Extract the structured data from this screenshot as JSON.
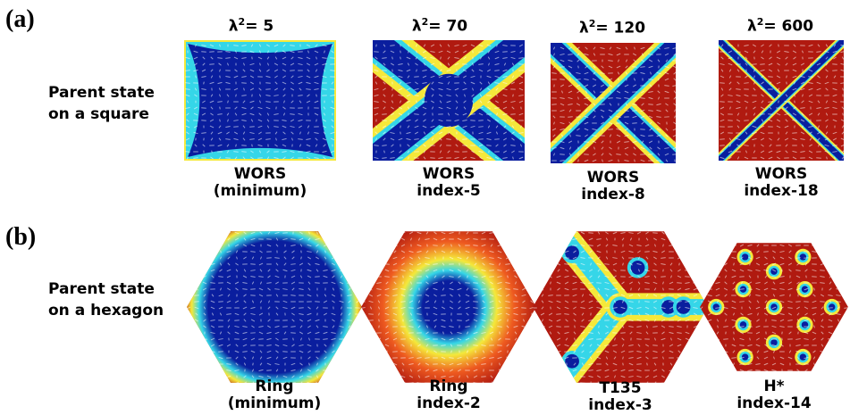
{
  "panels": {
    "a": {
      "label": "(a)",
      "row_title": [
        "Parent state",
        "on a square"
      ],
      "columns": [
        {
          "lambda_symbol": "λ",
          "lambda_exp": "2",
          "lambda_value": "= 5",
          "caption": [
            "WORS",
            "(minimum)"
          ]
        },
        {
          "lambda_symbol": "λ",
          "lambda_exp": "2",
          "lambda_value": "= 70",
          "caption": [
            "WORS",
            "index-5"
          ]
        },
        {
          "lambda_symbol": "λ",
          "lambda_exp": "2",
          "lambda_value": "= 120",
          "caption": [
            "WORS",
            "index-8"
          ]
        },
        {
          "lambda_symbol": "λ",
          "lambda_exp": "2",
          "lambda_value": "= 600",
          "caption": [
            "WORS",
            "index-18"
          ]
        }
      ]
    },
    "b": {
      "label": "(b)",
      "row_title": [
        "Parent state",
        "on a hexagon"
      ],
      "columns": [
        {
          "caption": [
            "Ring",
            "(minimum)"
          ]
        },
        {
          "caption": [
            "Ring",
            "index-2"
          ]
        },
        {
          "caption": [
            "T135",
            "index-3"
          ]
        },
        {
          "caption": [
            "H*",
            "index-14"
          ]
        }
      ]
    }
  },
  "colors": {
    "low": "#0a1e9e",
    "high": "#b01a10",
    "mid_cyan": "#35d6e8",
    "mid_yellow": "#f5e83a",
    "director": "#ffffff"
  }
}
